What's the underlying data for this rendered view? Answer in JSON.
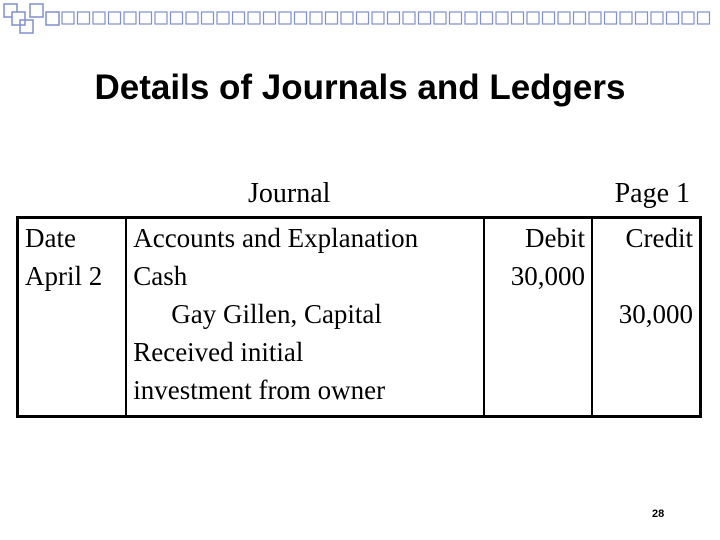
{
  "slide": {
    "title": "Details of Journals and Ledgers",
    "page_number": "28"
  },
  "journal": {
    "name": "Journal",
    "page_label": "Page 1",
    "headers": {
      "date": "Date",
      "accounts": "Accounts and Explanation",
      "debit": "Debit",
      "credit": "Credit"
    },
    "entry": {
      "date": "April 2",
      "debit_account": "Cash",
      "credit_account": "Gay Gillen, Capital",
      "explanation_line1": "Received initial",
      "explanation_line2": "investment from owner",
      "debit_amount": "30,000",
      "credit_amount": "30,000"
    }
  },
  "colors": {
    "deco_blue": "#7f8fcf",
    "text": "#000000"
  }
}
